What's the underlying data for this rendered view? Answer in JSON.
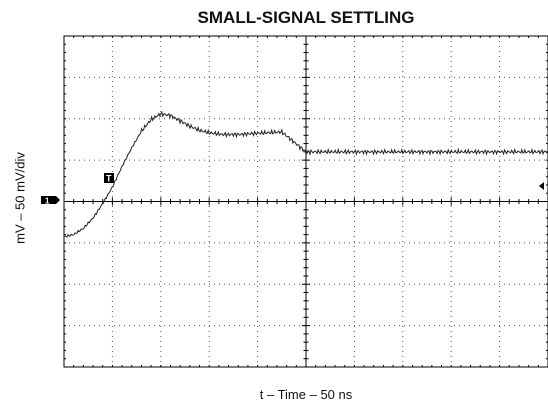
{
  "chart_data": {
    "type": "line",
    "title": "SMALL-SIGNAL SETTLING",
    "xlabel": "t – Time – 50 ns",
    "ylabel": "mV – 50 mV/div",
    "grid": true,
    "x_divisions": 10,
    "y_divisions": 8,
    "xlim": [
      0,
      10
    ],
    "ylim": [
      -4,
      4
    ],
    "channel_marker": "1",
    "trigger_marker": "T",
    "series": [
      {
        "values_x": [
          0,
          0.2,
          0.4,
          0.6,
          0.8,
          1.0,
          1.2,
          1.4,
          1.6,
          1.8,
          2.0,
          2.2,
          2.4,
          2.6,
          2.8,
          3.0,
          3.3,
          3.6,
          4.0,
          4.5,
          5.0,
          5.5,
          6.0,
          6.5,
          7.0,
          7.5,
          8.0,
          8.5,
          9.0,
          9.5,
          10.0
        ],
        "values_y": [
          -0.85,
          -0.8,
          -0.65,
          -0.4,
          -0.05,
          0.35,
          0.85,
          1.3,
          1.7,
          1.98,
          2.12,
          2.08,
          1.95,
          1.82,
          1.72,
          1.66,
          1.62,
          1.62,
          1.65,
          1.68,
          1.2,
          1.2,
          1.2,
          1.2,
          1.2,
          1.2,
          1.2,
          1.2,
          1.2,
          1.2,
          1.2
        ]
      }
    ]
  }
}
